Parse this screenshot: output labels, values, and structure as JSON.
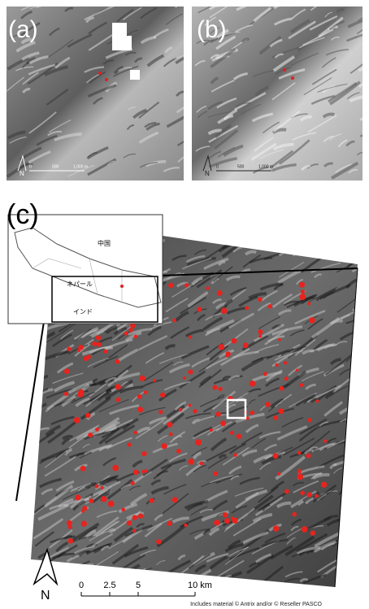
{
  "panels": [
    {
      "label": "(a)",
      "north": "N",
      "scale": [
        "0",
        "500",
        "1,000 m"
      ]
    },
    {
      "label": "(b)",
      "north": "N",
      "scale": [
        "0",
        "500",
        "1,000 m"
      ]
    }
  ],
  "overview": {
    "label": "(c)",
    "north": "N",
    "inset": [
      "中国",
      "ネパール",
      "インド"
    ],
    "scale": [
      "0",
      "2.5",
      "5",
      "10 km"
    ],
    "credit": "Includes material © Antrix and/or © Reseller PASCO"
  }
}
